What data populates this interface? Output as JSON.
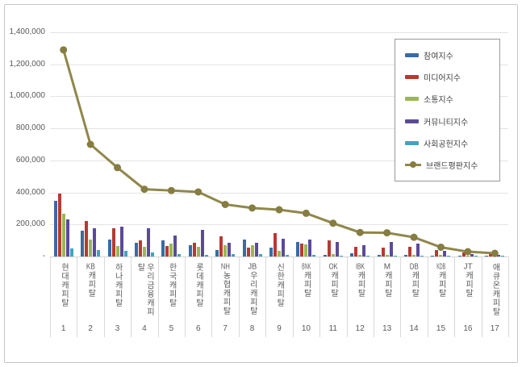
{
  "chart_data": {
    "type": "bar+line",
    "title": "",
    "xlabel": "",
    "ylabel": "",
    "ylim": [
      0,
      1400000
    ],
    "grid": true,
    "legend_position": "top-right",
    "y_ticks": [
      "1,400,000",
      "1,200,000",
      "1,000,000",
      "800,000",
      "600,000",
      "400,000",
      "200,000",
      "-"
    ],
    "categories": [
      "현대캐피탈",
      "KB캐피탈",
      "하나캐피탈",
      "우리금융캐피탈",
      "한국캐피탈",
      "롯데캐피탈",
      "NH농협캐피탈",
      "JB우리캐피탈",
      "신한캐피탈",
      "BNK캐피탈",
      "OK캐피탈",
      "IBK캐피탈",
      "M캐피탈",
      "DB캐피탈",
      "KDB캐피탈",
      "JT캐피탈",
      "애큐온캐피탈"
    ],
    "ranks": [
      "1",
      "2",
      "3",
      "4",
      "5",
      "6",
      "7",
      "8",
      "9",
      "10",
      "11",
      "12",
      "13",
      "14",
      "15",
      "16",
      "17"
    ],
    "series": [
      {
        "name": "참여지수",
        "type": "bar",
        "color": "#3A6BA5",
        "values": [
          350000,
          160000,
          105000,
          88000,
          100000,
          71000,
          38000,
          104000,
          57000,
          92000,
          12000,
          20000,
          10000,
          8000,
          6000,
          4000,
          3000
        ]
      },
      {
        "name": "미디어지수",
        "type": "bar",
        "color": "#B43B33",
        "values": [
          395000,
          220000,
          175000,
          100000,
          67000,
          88000,
          125000,
          56000,
          144000,
          82000,
          99000,
          61000,
          55000,
          60000,
          40000,
          25000,
          15000
        ]
      },
      {
        "name": "소통지수",
        "type": "bar",
        "color": "#9BB655",
        "values": [
          265000,
          108000,
          65000,
          60000,
          83000,
          61000,
          70000,
          70000,
          35000,
          75000,
          15000,
          8000,
          12000,
          10000,
          8000,
          5000,
          4000
        ]
      },
      {
        "name": "커뮤니티지수",
        "type": "bar",
        "color": "#5B4B97",
        "values": [
          232000,
          175000,
          185000,
          175000,
          133000,
          167000,
          87000,
          87000,
          113000,
          104000,
          92000,
          70000,
          90000,
          80000,
          35000,
          15000,
          10000
        ]
      },
      {
        "name": "사회공헌지수",
        "type": "bar",
        "color": "#44A3BC",
        "values": [
          50000,
          40000,
          33000,
          27000,
          17000,
          11000,
          17000,
          14000,
          8000,
          8000,
          5000,
          5000,
          4000,
          4000,
          3000,
          2000,
          2000
        ]
      },
      {
        "name": "브랜드평판지수",
        "type": "line",
        "color": "#8F874B",
        "marker_color": "#857D41",
        "values": [
          1290000,
          700000,
          555000,
          420000,
          412000,
          403000,
          325000,
          303000,
          292000,
          270000,
          208000,
          150000,
          148000,
          120000,
          58000,
          30000,
          20000
        ]
      }
    ]
  }
}
